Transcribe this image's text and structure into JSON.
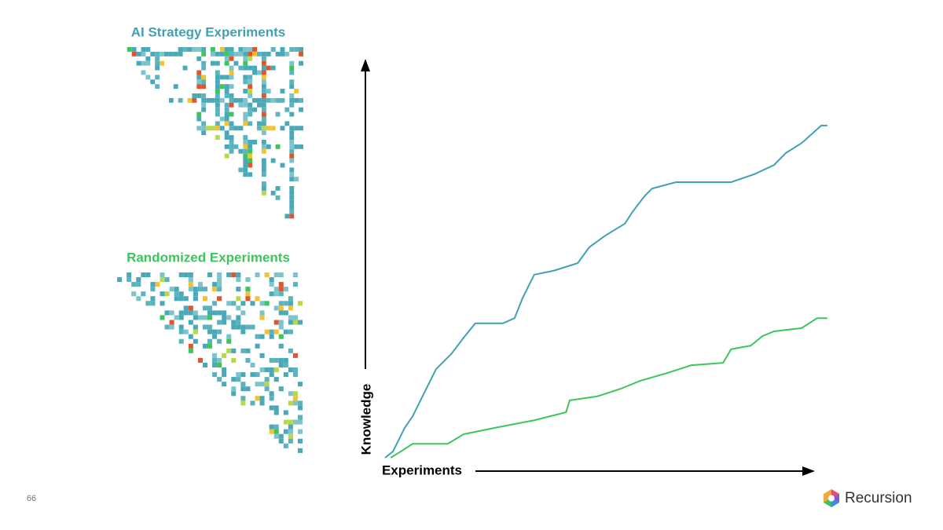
{
  "slide": {
    "heatmap_titles": [
      "AI Strategy Experiments",
      "Randomized Experiments"
    ],
    "page_number": "66",
    "brand": "Recursion"
  },
  "chart_data": {
    "type": "line",
    "x_label": "Experiments",
    "y_label": "Knowledge",
    "xlim": [
      0,
      100
    ],
    "ylim": [
      0,
      100
    ],
    "series": [
      {
        "color": "#3fa1b3",
        "x": [
          4.2,
          5.9,
          8.4,
          10.1,
          12.6,
          15.1,
          18.5,
          21.0,
          23.5,
          29.4,
          31.9,
          33.6,
          36.1,
          40.3,
          45.4,
          47.9,
          51.3,
          55.5,
          57.1,
          59.7,
          61.3,
          66.4,
          78.2,
          83.2,
          87.4,
          89.9,
          93.3,
          97.5,
          98.8
        ],
        "values": [
          0,
          1.6,
          7.5,
          10.4,
          16.3,
          22.2,
          26.2,
          30.1,
          33.7,
          33.7,
          35.0,
          40.0,
          45.9,
          46.9,
          48.8,
          52.8,
          55.7,
          58.7,
          61.6,
          65.6,
          67.5,
          69.1,
          69.1,
          71.1,
          73.4,
          76.4,
          78.9,
          83.3,
          83.3
        ]
      },
      {
        "color": "#3ec45c",
        "x": [
          5.4,
          7.6,
          10.1,
          17.6,
          21.0,
          27.7,
          36.1,
          42.9,
          43.7,
          49.6,
          54.6,
          58.8,
          64.7,
          69.7,
          76.5,
          78.2,
          82.4,
          84.9,
          87.4,
          93.3,
          96.6,
          98.8
        ],
        "values": [
          0,
          1.6,
          3.5,
          3.5,
          5.9,
          7.5,
          9.4,
          11.4,
          14.4,
          15.4,
          17.3,
          19.3,
          21.3,
          23.2,
          23.8,
          27.2,
          28.1,
          30.5,
          31.7,
          32.5,
          35.0,
          35.0
        ]
      }
    ]
  }
}
